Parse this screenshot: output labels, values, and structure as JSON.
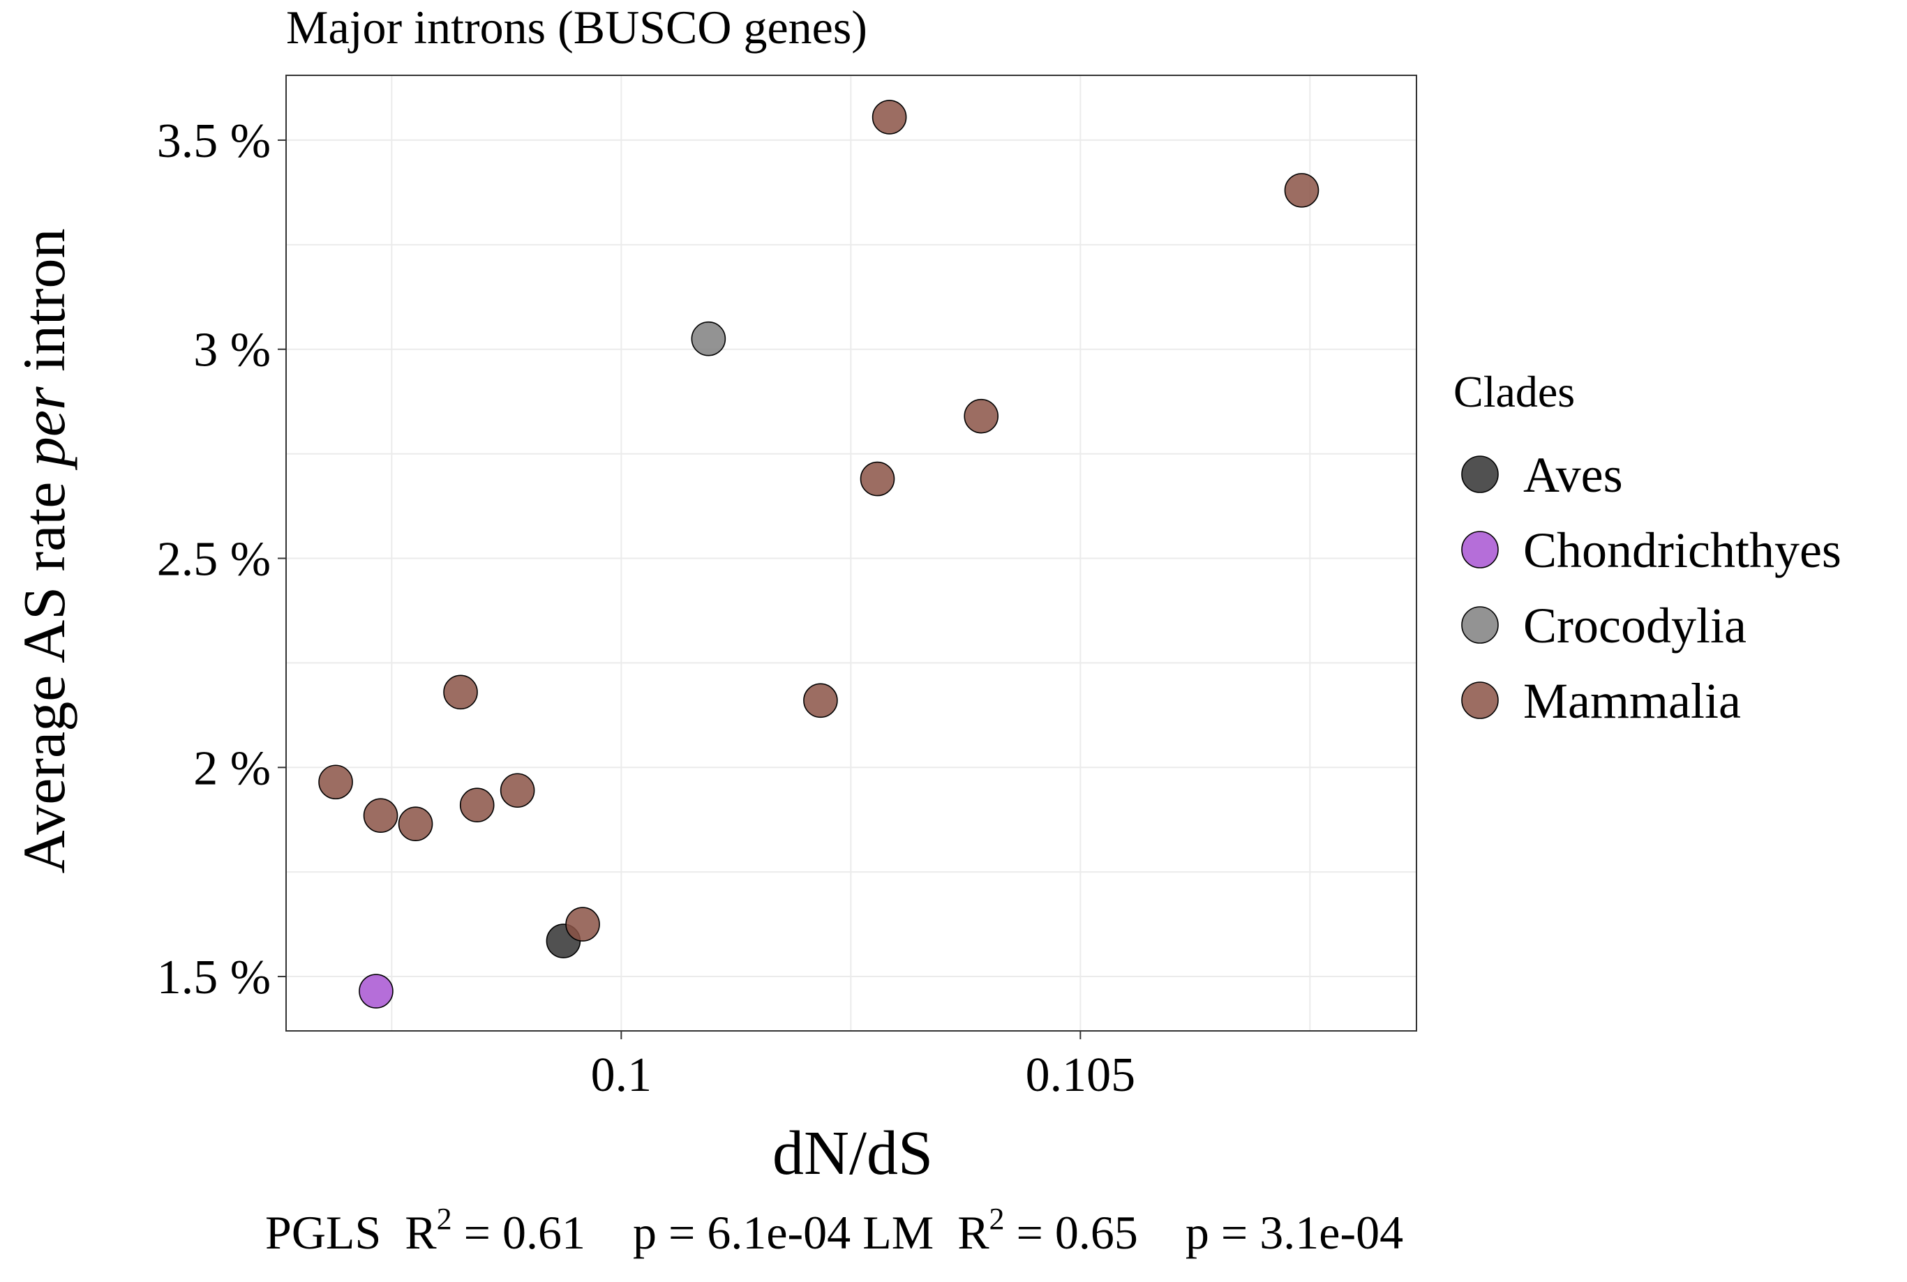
{
  "chart_data": {
    "type": "scatter",
    "title": "Major introns (BUSCO genes)",
    "xlabel": "dN/dS",
    "ylabel": {
      "before": "Average AS rate ",
      "italic": "per",
      "after": " intron"
    },
    "x_ticks": [
      {
        "value": 0.1,
        "label": "0.1"
      },
      {
        "value": 0.105,
        "label": "0.105"
      }
    ],
    "y_ticks": [
      {
        "value": 1.5,
        "label": "1.5 %"
      },
      {
        "value": 2.0,
        "label": "2 %"
      },
      {
        "value": 2.5,
        "label": "2.5 %"
      },
      {
        "value": 3.0,
        "label": "3 %"
      },
      {
        "value": 3.5,
        "label": "3.5 %"
      }
    ],
    "xlim": [
      0.09635,
      0.10866
    ],
    "ylim": [
      1.37,
      3.655
    ],
    "grid": true,
    "legend": {
      "title": "Clades",
      "placement": "right"
    },
    "series": [
      {
        "name": "Aves",
        "color": "#333333",
        "points": [
          {
            "x": 0.09937,
            "y": 1.585
          }
        ]
      },
      {
        "name": "Chondrichthyes",
        "color": "#a855d2",
        "points": [
          {
            "x": 0.09733,
            "y": 1.465
          }
        ]
      },
      {
        "name": "Crocodylia",
        "color": "#808080",
        "points": [
          {
            "x": 0.10095,
            "y": 3.025
          }
        ]
      },
      {
        "name": "Mammalia",
        "color": "#8b5447",
        "points": [
          {
            "x": 0.10292,
            "y": 3.555
          },
          {
            "x": 0.10741,
            "y": 3.38
          },
          {
            "x": 0.10392,
            "y": 2.84
          },
          {
            "x": 0.10279,
            "y": 2.69
          },
          {
            "x": 0.10217,
            "y": 2.16
          },
          {
            "x": 0.09825,
            "y": 2.18
          },
          {
            "x": 0.09689,
            "y": 1.965
          },
          {
            "x": 0.09738,
            "y": 1.885
          },
          {
            "x": 0.09776,
            "y": 1.865
          },
          {
            "x": 0.09843,
            "y": 1.91
          },
          {
            "x": 0.09887,
            "y": 1.945
          },
          {
            "x": 0.09958,
            "y": 1.625
          }
        ]
      }
    ],
    "footnote": {
      "pgls_label": "PGLS",
      "pgls_r2": "0.61",
      "pgls_p": "6.1e-04",
      "lm_label": "LM",
      "lm_r2": "0.65",
      "lm_p": "3.1e-04"
    }
  }
}
